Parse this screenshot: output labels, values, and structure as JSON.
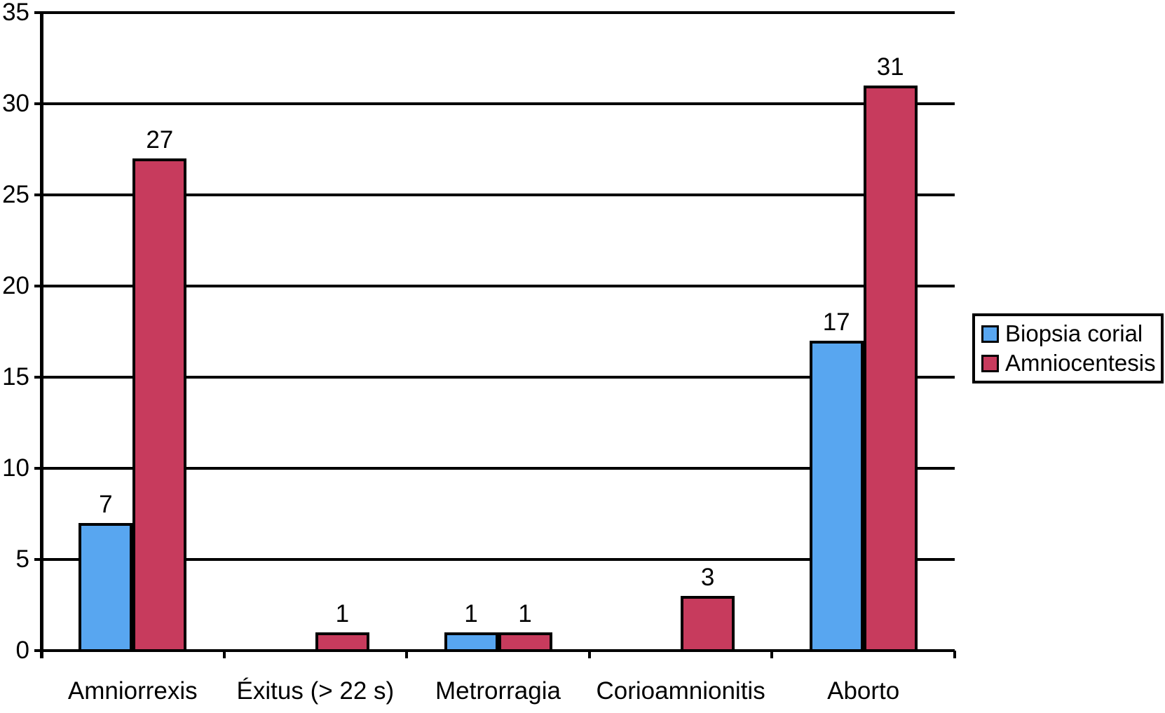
{
  "chart_data": {
    "type": "bar",
    "categories": [
      "Amniorrexis",
      "Éxitus (> 22 s)",
      "Metrorragia",
      "Corioamnionitis",
      "Aborto"
    ],
    "series": [
      {
        "name": "Biopsia corial",
        "color": "#58A6F0",
        "values": [
          7,
          0,
          1,
          0,
          17
        ]
      },
      {
        "name": "Amniocentesis",
        "color": "#C73B5D",
        "values": [
          27,
          1,
          1,
          3,
          31
        ]
      }
    ],
    "ylim": [
      0,
      35
    ],
    "yticks": [
      0,
      5,
      10,
      15,
      20,
      25,
      30,
      35
    ],
    "grid": true,
    "legend_position": "right",
    "value_labels": "shown above non-zero bars",
    "bar_value_labels": {
      "Amniorrexis": {
        "Biopsia corial": 7,
        "Amniocentesis": 27
      },
      "Éxitus (> 22 s)": {
        "Amniocentesis": 1
      },
      "Metrorragia": {
        "Biopsia corial": 1,
        "Amniocentesis": 1
      },
      "Corioamnionitis": {
        "Amniocentesis": 3
      },
      "Aborto": {
        "Biopsia corial": 17,
        "Amniocentesis": 31
      }
    },
    "axis_color": "#000000",
    "background_color": "#FFFFFF"
  }
}
